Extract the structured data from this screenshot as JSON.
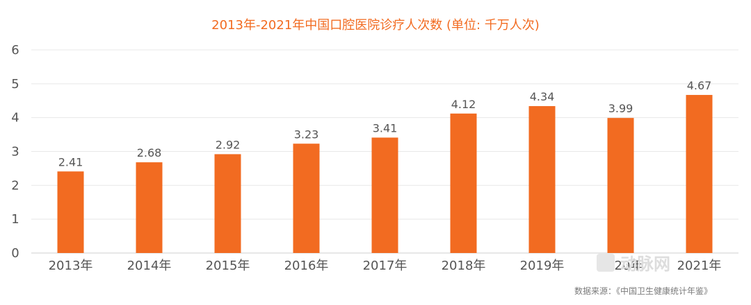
{
  "chart_data": {
    "type": "bar",
    "title": "2013年-2021年中国口腔医院诊疗人次数 (单位: 千万人次)",
    "categories": [
      "2013年",
      "2014年",
      "2015年",
      "2016年",
      "2017年",
      "2018年",
      "2019年",
      "2020年",
      "2021年"
    ],
    "values": [
      2.41,
      2.68,
      2.92,
      3.23,
      3.41,
      4.12,
      4.34,
      3.99,
      4.67
    ],
    "ylim": [
      0,
      6
    ],
    "yticks": [
      0,
      1,
      2,
      3,
      4,
      5,
      6
    ],
    "xlabel": "",
    "ylabel": "",
    "grid": true,
    "color": "#f26b21"
  },
  "source": "数据来源：《中国卫生健康统计年鉴》",
  "watermark": "动脉网"
}
